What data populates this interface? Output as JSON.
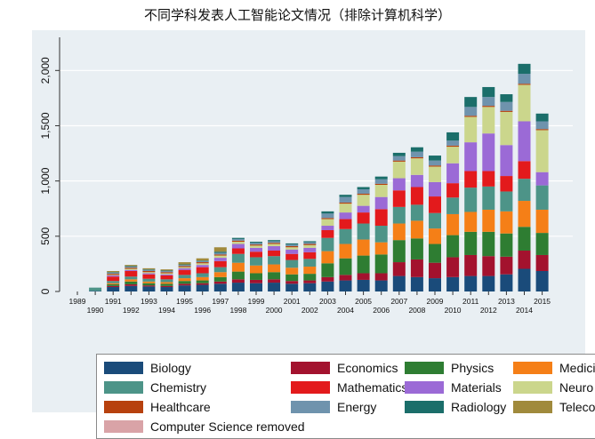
{
  "chart_data": {
    "type": "bar",
    "stacked": true,
    "title": "不同学科发表人工智能论文情况（排除计算机科学）",
    "xlabel": "",
    "ylabel": "",
    "ylim": [
      0,
      2300
    ],
    "yticks": [
      0,
      500,
      1000,
      1500,
      2000
    ],
    "ytick_labels": [
      "0",
      "500",
      "1,000",
      "1,500",
      "2,000"
    ],
    "categories": [
      "1989",
      "1990",
      "1991",
      "1992",
      "1993",
      "1994",
      "1995",
      "1996",
      "1997",
      "1998",
      "1999",
      "2000",
      "2001",
      "2002",
      "2003",
      "2004",
      "2005",
      "2006",
      "2007",
      "2008",
      "2009",
      "2010",
      "2011",
      "2012",
      "2013",
      "2014",
      "2015"
    ],
    "series": [
      {
        "name": "Biology",
        "color": "#1a4b7a",
        "values": [
          0,
          5,
          40,
          50,
          45,
          40,
          55,
          60,
          70,
          80,
          75,
          80,
          70,
          75,
          90,
          100,
          105,
          100,
          140,
          130,
          120,
          130,
          140,
          140,
          155,
          205,
          185
        ]
      },
      {
        "name": "Economics",
        "color": "#a3122e",
        "values": [
          0,
          0,
          10,
          15,
          10,
          10,
          15,
          15,
          20,
          30,
          30,
          30,
          25,
          25,
          40,
          50,
          60,
          65,
          125,
          160,
          140,
          180,
          190,
          180,
          160,
          165,
          145
        ]
      },
      {
        "name": "Physics",
        "color": "#2e7d32",
        "values": [
          0,
          0,
          15,
          25,
          20,
          20,
          25,
          25,
          40,
          70,
          60,
          65,
          60,
          60,
          125,
          150,
          160,
          170,
          200,
          190,
          170,
          200,
          210,
          220,
          210,
          215,
          200
        ]
      },
      {
        "name": "Medicine",
        "color": "#f57f17",
        "values": [
          0,
          0,
          10,
          20,
          15,
          15,
          25,
          30,
          45,
          80,
          70,
          70,
          60,
          65,
          110,
          130,
          145,
          110,
          150,
          160,
          140,
          190,
          180,
          200,
          200,
          235,
          210
        ]
      },
      {
        "name": "Chemistry",
        "color": "#4d9488",
        "values": [
          0,
          30,
          20,
          25,
          25,
          25,
          30,
          35,
          45,
          80,
          75,
          75,
          70,
          70,
          120,
          135,
          145,
          150,
          150,
          145,
          140,
          150,
          220,
          210,
          180,
          200,
          220
        ]
      },
      {
        "name": "Mathematics",
        "color": "#e31a1c",
        "values": [
          0,
          0,
          40,
          50,
          40,
          35,
          45,
          55,
          55,
          50,
          50,
          50,
          55,
          60,
          70,
          90,
          100,
          150,
          150,
          160,
          150,
          130,
          150,
          140,
          140,
          160,
          0
        ]
      },
      {
        "name": "Materials",
        "color": "#9b6ad6",
        "values": [
          0,
          0,
          10,
          10,
          10,
          10,
          15,
          20,
          30,
          40,
          35,
          40,
          40,
          40,
          40,
          60,
          60,
          110,
          110,
          110,
          130,
          180,
          260,
          340,
          280,
          360,
          120
        ]
      },
      {
        "name": "Neuro",
        "color": "#cbd68c",
        "values": [
          0,
          0,
          5,
          10,
          10,
          10,
          10,
          15,
          20,
          20,
          20,
          20,
          20,
          25,
          60,
          80,
          100,
          110,
          150,
          150,
          140,
          150,
          230,
          240,
          300,
          330,
          380
        ]
      },
      {
        "name": "Healthcare",
        "color": "#b7410e",
        "values": [
          0,
          0,
          10,
          10,
          10,
          10,
          10,
          10,
          10,
          10,
          10,
          10,
          10,
          10,
          10,
          10,
          10,
          10,
          10,
          10,
          10,
          10,
          10,
          10,
          10,
          10,
          10
        ]
      },
      {
        "name": "Energy",
        "color": "#6f93ad",
        "values": [
          0,
          0,
          10,
          10,
          10,
          10,
          10,
          10,
          15,
          15,
          15,
          15,
          15,
          15,
          40,
          50,
          40,
          40,
          40,
          50,
          45,
          45,
          80,
          80,
          80,
          90,
          70
        ]
      },
      {
        "name": "Radiology",
        "color": "#1b6e6a",
        "values": [
          0,
          0,
          5,
          5,
          5,
          5,
          5,
          5,
          10,
          10,
          10,
          10,
          10,
          10,
          20,
          20,
          20,
          25,
          30,
          40,
          45,
          75,
          90,
          90,
          70,
          90,
          70
        ]
      },
      {
        "name": "Telecom",
        "color": "#a08a3c",
        "values": [
          0,
          0,
          10,
          10,
          10,
          10,
          20,
          20,
          40,
          0,
          0,
          0,
          0,
          0,
          0,
          0,
          0,
          0,
          0,
          0,
          0,
          0,
          0,
          0,
          0,
          0,
          0
        ]
      },
      {
        "name": "Computer Science removed",
        "color": "#d9a3a7",
        "values": [
          0,
          0,
          0,
          0,
          0,
          0,
          0,
          0,
          0,
          0,
          0,
          0,
          0,
          0,
          0,
          0,
          0,
          0,
          0,
          0,
          0,
          0,
          0,
          0,
          0,
          0,
          0
        ]
      }
    ],
    "legend": "bottom"
  }
}
